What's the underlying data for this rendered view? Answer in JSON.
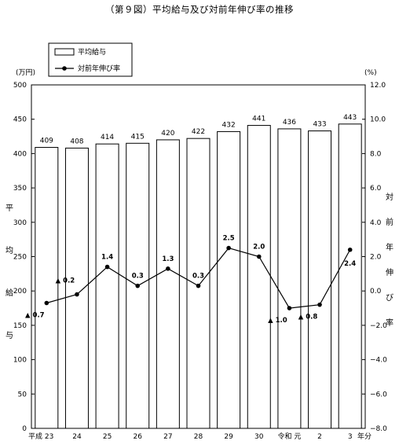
{
  "title": "（第９図）平均給与及び対前年伸び率の推移",
  "chart_data": {
    "type": "bar",
    "categories": [
      "平成 23",
      "24",
      "25",
      "26",
      "27",
      "28",
      "29",
      "30",
      "令和 元",
      "2",
      "3"
    ],
    "x_unit": "年分",
    "series": [
      {
        "name": "平均給与",
        "type": "bar",
        "axis": "left",
        "values": [
          409,
          408,
          414,
          415,
          420,
          422,
          432,
          441,
          436,
          433,
          443
        ],
        "labels": [
          "409",
          "408",
          "414",
          "415",
          "420",
          "422",
          "432",
          "441",
          "436",
          "433",
          "443"
        ]
      },
      {
        "name": "対前年伸び率",
        "type": "line",
        "axis": "right",
        "values": [
          -0.7,
          -0.2,
          1.4,
          0.3,
          1.3,
          0.3,
          2.5,
          2.0,
          -1.0,
          -0.8,
          2.4
        ],
        "labels": [
          "▲ 0.7",
          "▲ 0.2",
          "1.4",
          "0.3",
          "1.3",
          "0.3",
          "2.5",
          "2.0",
          "▲ 1.0",
          "▲ 0.8",
          "2.4"
        ]
      }
    ],
    "y_left": {
      "unit": "(万円)",
      "label": "平均給与",
      "ylim": [
        0,
        500
      ],
      "ticks": [
        "0",
        "50",
        "100",
        "150",
        "200",
        "250",
        "300",
        "350",
        "400",
        "450",
        "500"
      ]
    },
    "y_right": {
      "unit": "(%)",
      "label": "対前年伸び率",
      "ylim": [
        -8,
        12
      ],
      "ticks": [
        "−8.0",
        "−6.0",
        "−4.0",
        "−2.0",
        "0.0",
        "2.0",
        "4.0",
        "6.0",
        "8.0",
        "10.0",
        "12.0"
      ]
    },
    "legend": {
      "position": "top-left",
      "entries": [
        "平均給与",
        "対前年伸び率"
      ]
    },
    "grid": false
  }
}
